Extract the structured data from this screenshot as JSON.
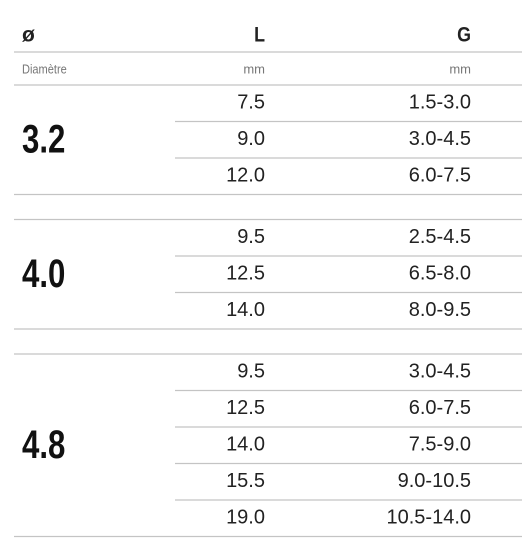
{
  "header": {
    "diameter": "ø",
    "L": "L",
    "G": "G"
  },
  "units": {
    "diameter": "Diamètre",
    "L": "mm",
    "G": "mm"
  },
  "groups": [
    {
      "diameter": "3.2",
      "rows": [
        [
          "7.5",
          "1.5-3.0"
        ],
        [
          "9.0",
          "3.0-4.5"
        ],
        [
          "12.0",
          "6.0-7.5"
        ]
      ]
    },
    {
      "diameter": "4.0",
      "rows": [
        [
          "9.5",
          "2.5-4.5"
        ],
        [
          "12.5",
          "6.5-8.0"
        ],
        [
          "14.0",
          "8.0-9.5"
        ]
      ]
    },
    {
      "diameter": "4.8",
      "rows": [
        [
          "9.5",
          "3.0-4.5"
        ],
        [
          "12.5",
          "6.0-7.5"
        ],
        [
          "14.0",
          "7.5-9.0"
        ],
        [
          "15.5",
          "9.0-10.5"
        ],
        [
          "19.0",
          "10.5-14.0"
        ]
      ]
    }
  ]
}
